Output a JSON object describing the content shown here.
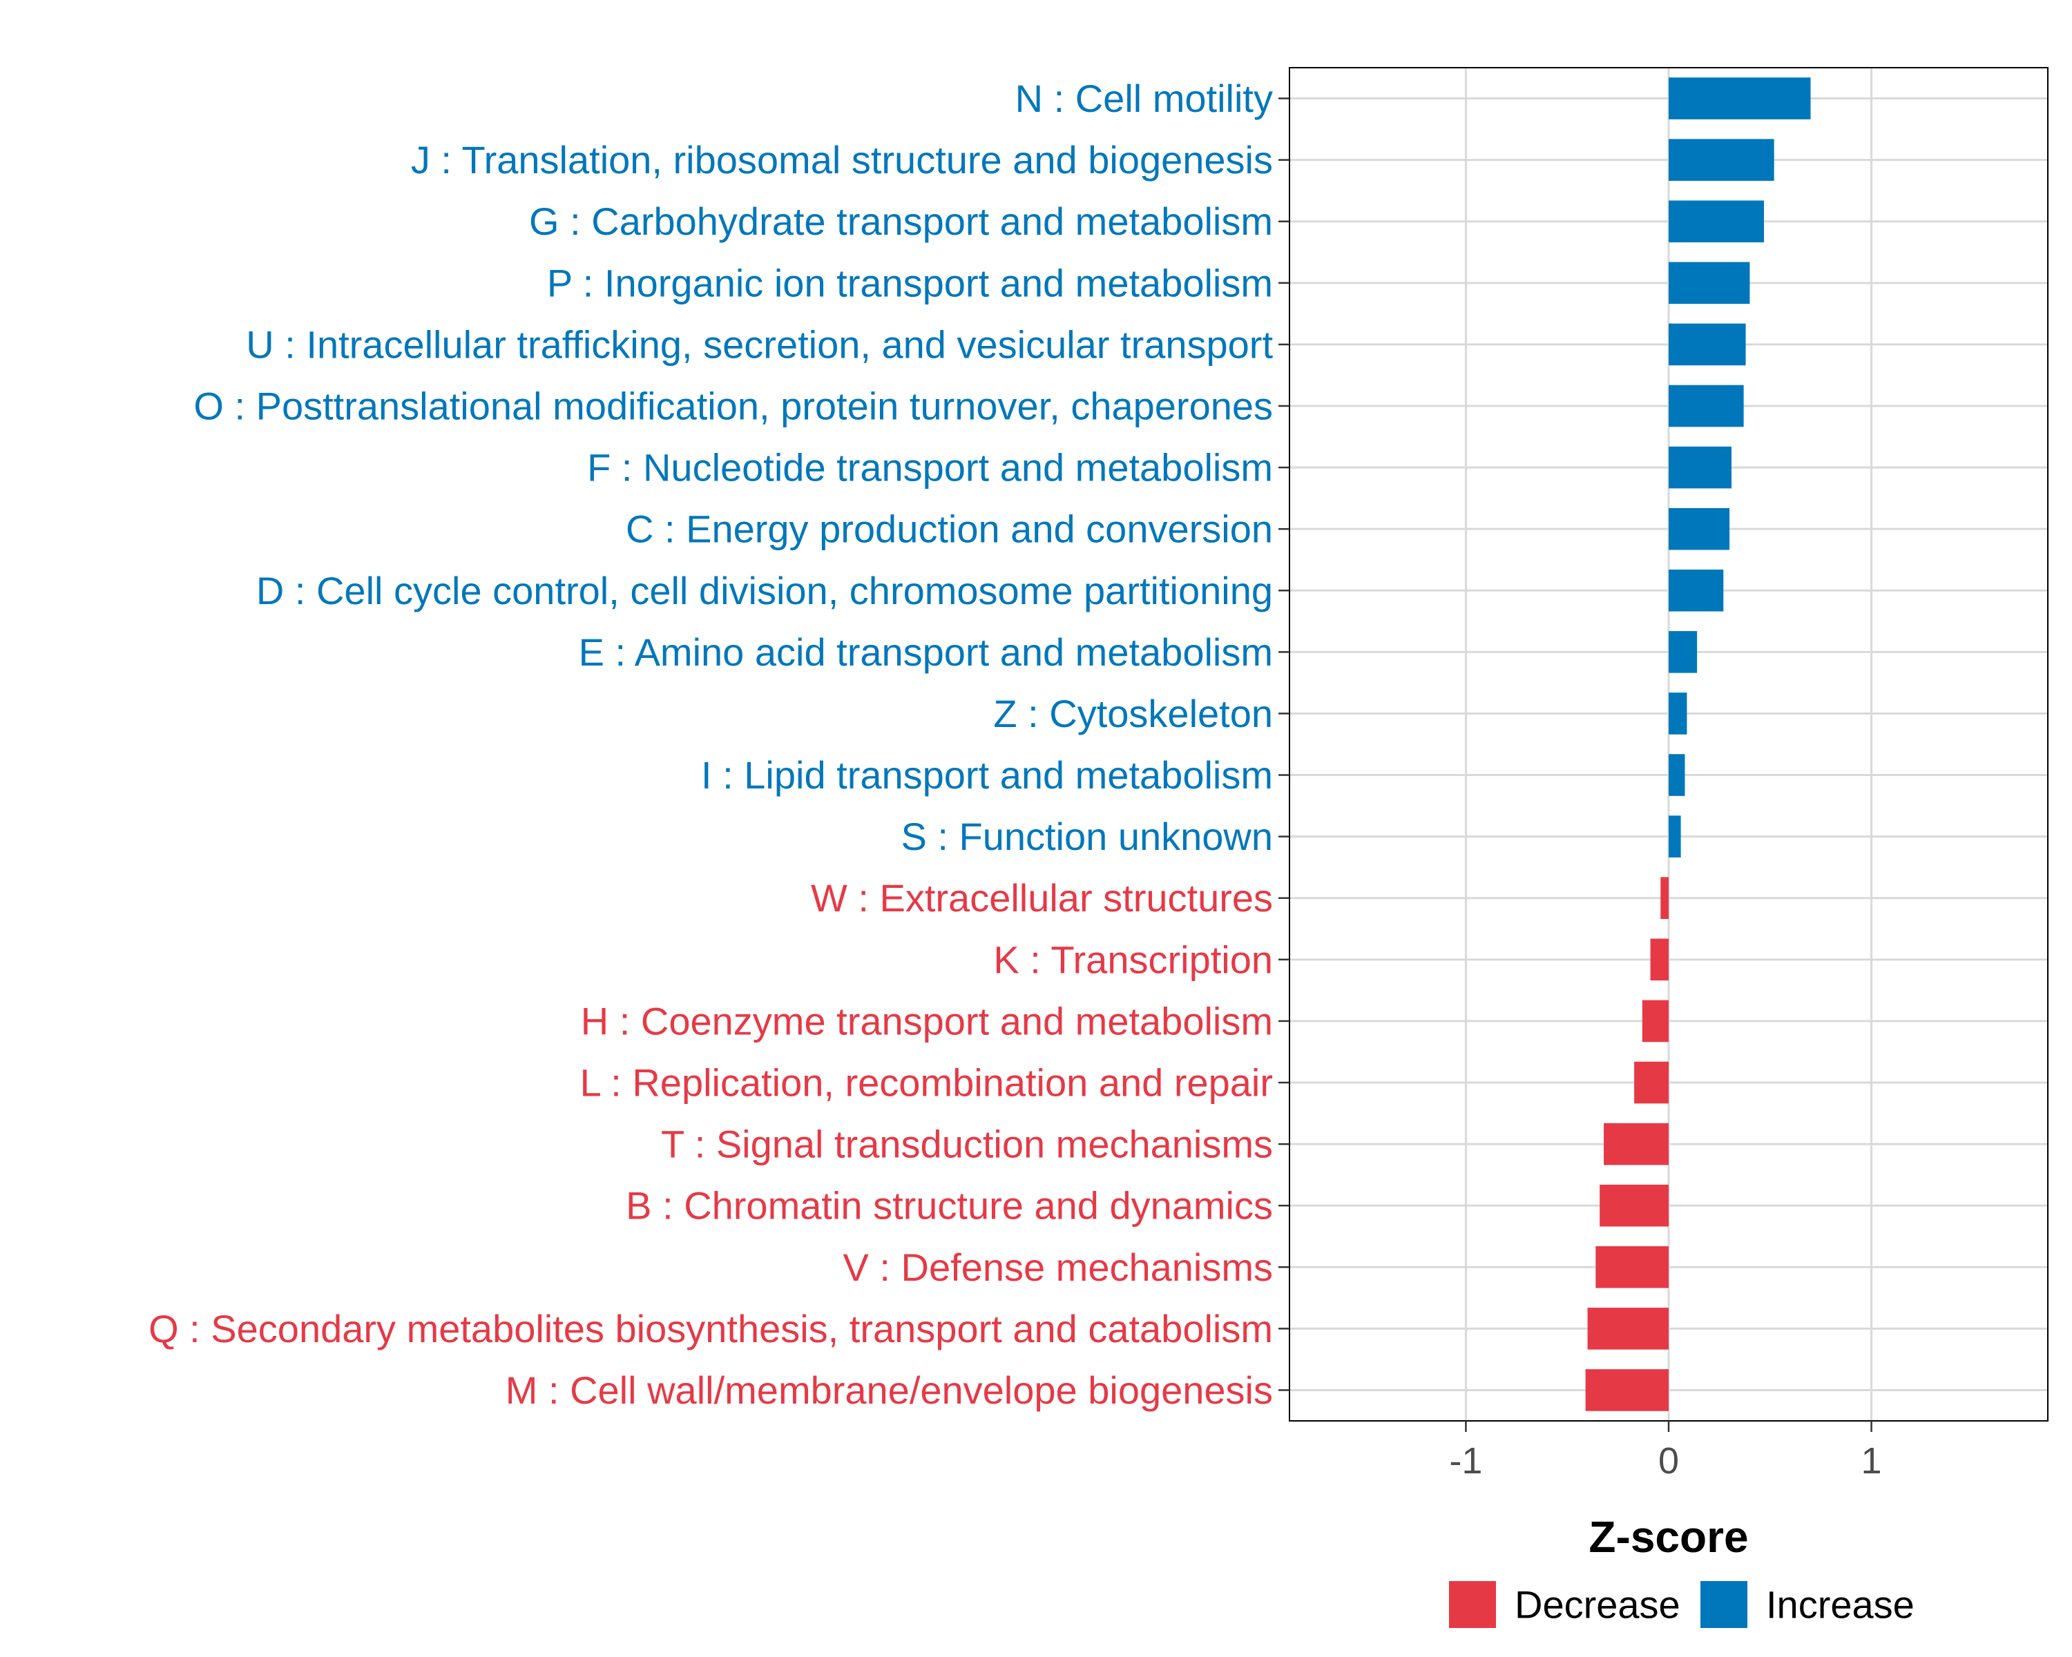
{
  "chart_data": {
    "type": "bar",
    "orientation": "horizontal",
    "xlabel": "Z-score",
    "xlim": [
      -1.87,
      1.87
    ],
    "xticks": [
      -1,
      0,
      1
    ],
    "xtick_labels": [
      "-1",
      "0",
      "1"
    ],
    "grid": true,
    "legend_position": "bottom",
    "colors": {
      "Increase": "#0077bb",
      "Decrease": "#e63946"
    },
    "legend": [
      {
        "name": "Decrease",
        "color": "#e63946"
      },
      {
        "name": "Increase",
        "color": "#0077bb"
      }
    ],
    "categories": [
      "N : Cell motility",
      "J : Translation, ribosomal structure and biogenesis",
      "G : Carbohydrate transport and metabolism",
      "P : Inorganic ion transport and metabolism",
      "U : Intracellular trafficking, secretion, and vesicular transport",
      "O : Posttranslational modification, protein turnover, chaperones",
      "F : Nucleotide transport and metabolism",
      "C : Energy production and conversion",
      "D : Cell cycle control, cell division, chromosome partitioning",
      "E : Amino acid transport and metabolism",
      "Z : Cytoskeleton",
      "I : Lipid transport and metabolism",
      "S : Function unknown",
      "W : Extracellular structures",
      "K : Transcription",
      "H : Coenzyme transport and metabolism",
      "L : Replication, recombination and repair",
      "T : Signal transduction mechanisms",
      "B : Chromatin structure and dynamics",
      "V : Defense mechanisms",
      "Q : Secondary metabolites biosynthesis, transport and catabolism",
      "M : Cell wall/membrane/envelope biogenesis"
    ],
    "values": [
      0.7,
      0.52,
      0.47,
      0.4,
      0.38,
      0.37,
      0.31,
      0.3,
      0.27,
      0.14,
      0.09,
      0.08,
      0.06,
      -0.04,
      -0.09,
      -0.13,
      -0.17,
      -0.32,
      -0.34,
      -0.36,
      -0.4,
      -0.41
    ],
    "groups": [
      "Increase",
      "Increase",
      "Increase",
      "Increase",
      "Increase",
      "Increase",
      "Increase",
      "Increase",
      "Increase",
      "Increase",
      "Increase",
      "Increase",
      "Increase",
      "Decrease",
      "Decrease",
      "Decrease",
      "Decrease",
      "Decrease",
      "Decrease",
      "Decrease",
      "Decrease",
      "Decrease"
    ]
  }
}
